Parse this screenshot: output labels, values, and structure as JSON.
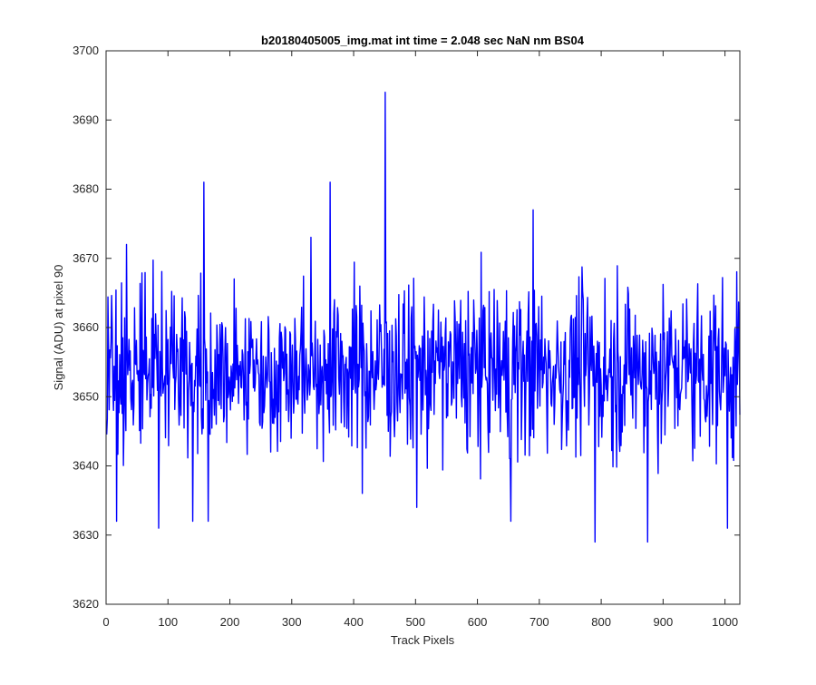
{
  "chart_data": {
    "type": "line",
    "title": "b20180405005_img.mat int time = 2.048 sec  NaN nm BS04",
    "xlabel": "Track Pixels",
    "ylabel": "Signal (ADU) at pixel 90",
    "xlim": [
      0,
      1024
    ],
    "ylim": [
      3620,
      3700
    ],
    "xticks": [
      0,
      100,
      200,
      300,
      400,
      500,
      600,
      700,
      800,
      900,
      1000
    ],
    "yticks": [
      3620,
      3630,
      3640,
      3650,
      3660,
      3670,
      3680,
      3690,
      3700
    ],
    "grid": false,
    "series": [
      {
        "color": "#0000ff",
        "x_start": 1,
        "x_step": 1,
        "mean": 3654,
        "approx_std": 6.0,
        "notable_points": [
          {
            "x": 17,
            "y": 3632
          },
          {
            "x": 33,
            "y": 3672
          },
          {
            "x": 85,
            "y": 3631
          },
          {
            "x": 140,
            "y": 3632
          },
          {
            "x": 158,
            "y": 3681
          },
          {
            "x": 165,
            "y": 3632
          },
          {
            "x": 362,
            "y": 3681
          },
          {
            "x": 451,
            "y": 3694
          },
          {
            "x": 502,
            "y": 3634
          },
          {
            "x": 654,
            "y": 3632
          },
          {
            "x": 690,
            "y": 3677
          },
          {
            "x": 790,
            "y": 3629
          },
          {
            "x": 875,
            "y": 3629
          },
          {
            "x": 1004,
            "y": 3631
          }
        ]
      }
    ]
  },
  "colors": {
    "line": "#0000ff",
    "axes": "#262626",
    "background": "#ffffff"
  }
}
